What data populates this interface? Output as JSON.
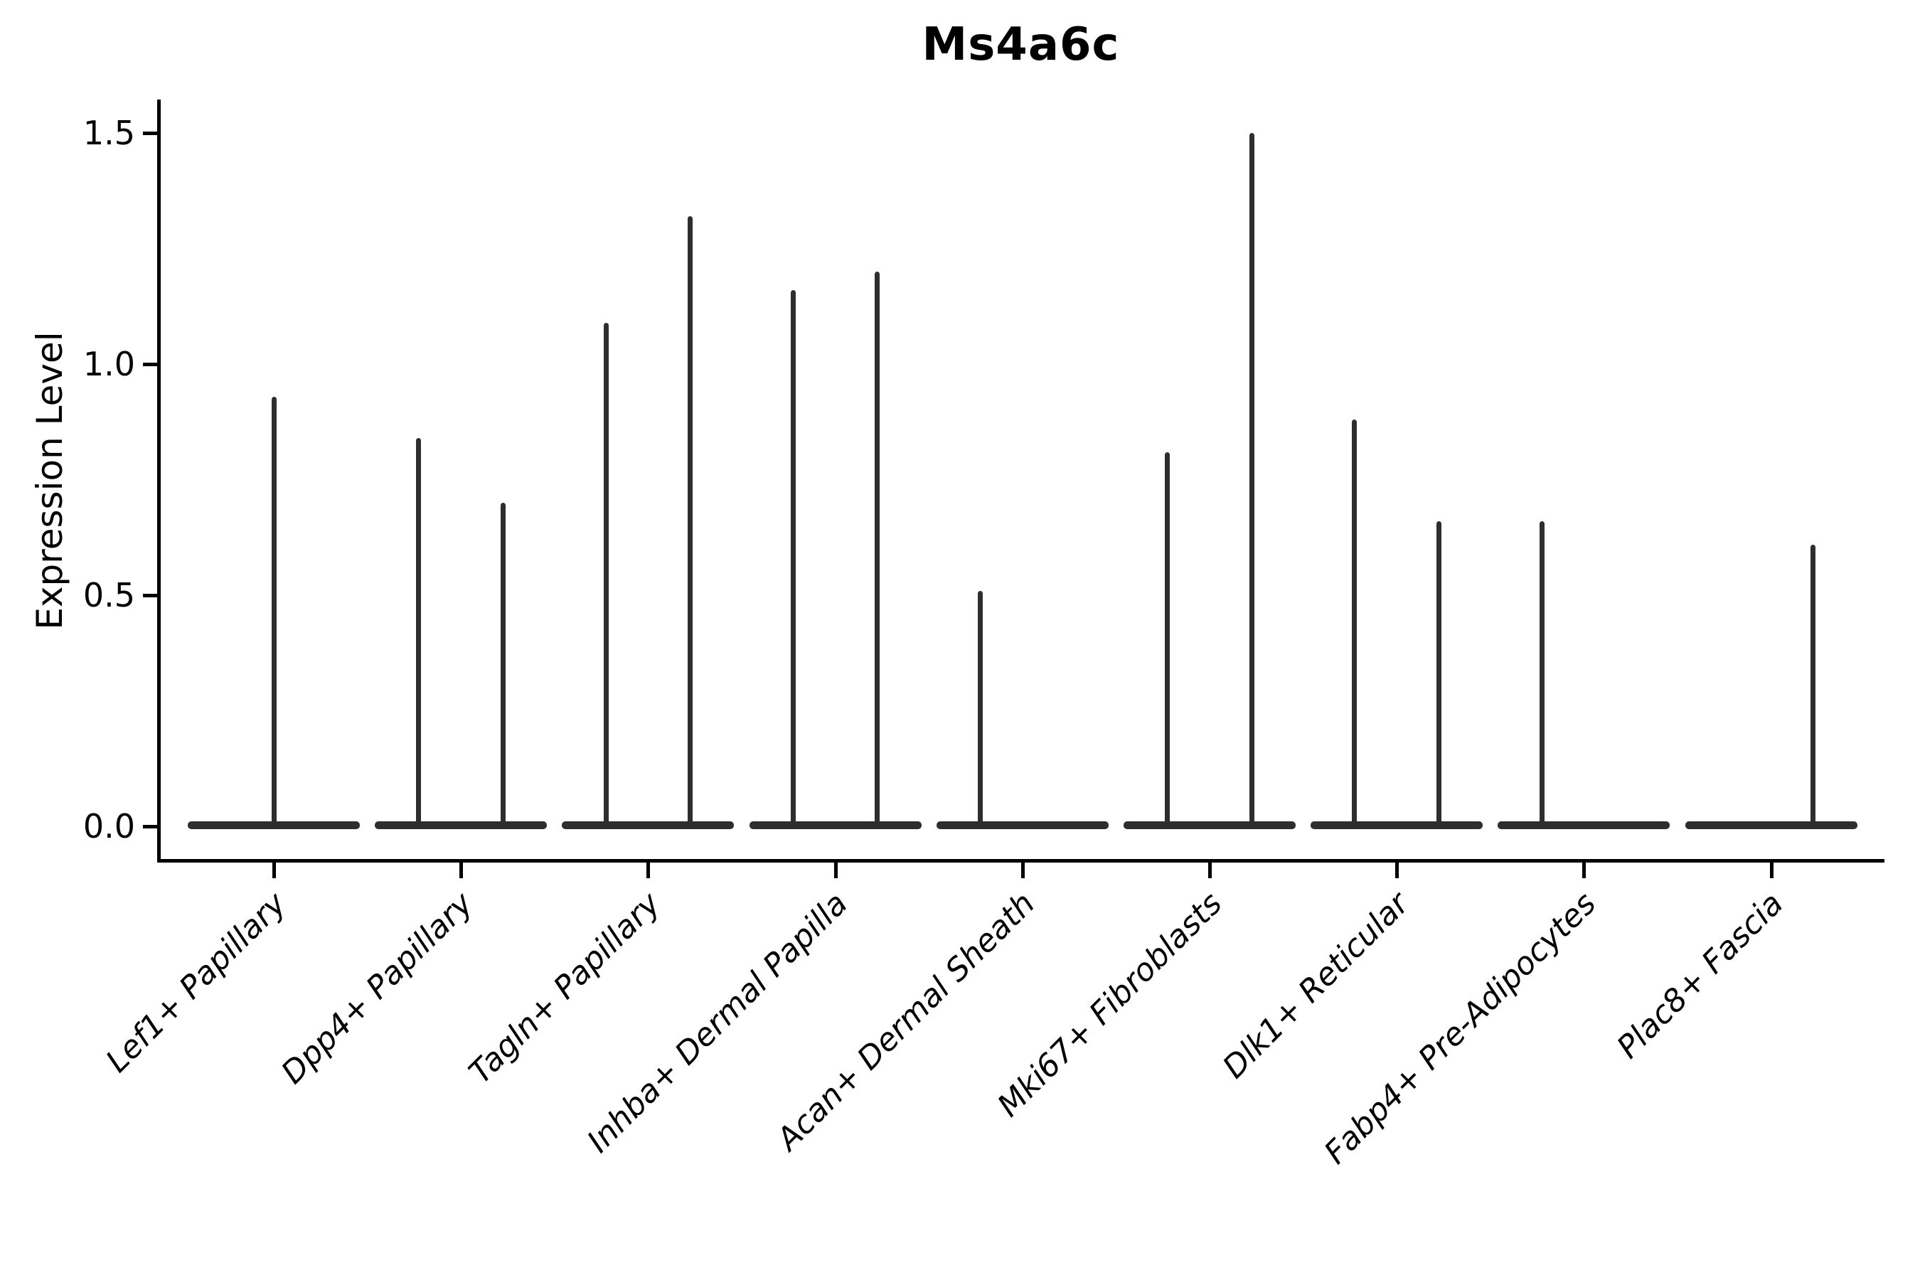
{
  "title": "Ms4a6c",
  "y_axis": {
    "label": "Expression Level",
    "ticks": [
      {
        "value": 0.0,
        "label": "0.0"
      },
      {
        "value": 0.5,
        "label": "0.5"
      },
      {
        "value": 1.0,
        "label": "1.0"
      },
      {
        "value": 1.5,
        "label": "1.5"
      }
    ]
  },
  "x_axis": {
    "categories": [
      "Lef1+ Papillary",
      "Dpp4+ Papillary",
      "Tagln+ Papillary",
      "Inhba+ Dermal Papilla",
      "Acan+ Dermal Sheath",
      "Mki67+ Fibroblasts",
      "Dlk1+ Reticular",
      "Fabp4+ Pre-Adipocytes",
      "Plac8+ Fascia"
    ]
  },
  "chart_data": {
    "type": "violin",
    "title": "Ms4a6c",
    "xlabel": "",
    "ylabel": "Expression Level",
    "ylim": [
      0,
      1.57
    ],
    "grid": false,
    "legend": "none",
    "ink_color": "#2e2e2e",
    "categories": [
      "Lef1+ Papillary",
      "Dpp4+ Papillary",
      "Tagln+ Papillary",
      "Inhba+ Dermal Papilla",
      "Acan+ Dermal Sheath",
      "Mki67+ Fibroblasts",
      "Dlk1+ Reticular",
      "Fabp4+ Pre-Adipocytes",
      "Plac8+ Fascia"
    ],
    "violins": [
      {
        "category": "Lef1+ Papillary",
        "base_value": 0,
        "spikes": [
          {
            "dx": 0.0,
            "max": 0.93
          }
        ]
      },
      {
        "category": "Dpp4+ Papillary",
        "base_value": 0,
        "spikes": [
          {
            "dx": -0.225,
            "max": 0.84
          },
          {
            "dx": 0.225,
            "max": 0.7
          }
        ]
      },
      {
        "category": "Tagln+ Papillary",
        "base_value": 0,
        "spikes": [
          {
            "dx": -0.225,
            "max": 1.09
          },
          {
            "dx": 0.225,
            "max": 1.32
          }
        ]
      },
      {
        "category": "Inhba+ Dermal Papilla",
        "base_value": 0,
        "spikes": [
          {
            "dx": -0.225,
            "max": 1.16
          },
          {
            "dx": 0.225,
            "max": 1.2
          }
        ]
      },
      {
        "category": "Acan+ Dermal Sheath",
        "base_value": 0,
        "spikes": [
          {
            "dx": -0.225,
            "max": 0.51
          }
        ]
      },
      {
        "category": "Mki67+ Fibroblasts",
        "base_value": 0,
        "spikes": [
          {
            "dx": -0.225,
            "max": 0.81
          },
          {
            "dx": 0.225,
            "max": 1.5
          }
        ]
      },
      {
        "category": "Dlk1+ Reticular",
        "base_value": 0,
        "spikes": [
          {
            "dx": -0.225,
            "max": 0.88
          },
          {
            "dx": 0.225,
            "max": 0.66
          }
        ]
      },
      {
        "category": "Fabp4+ Pre-Adipocytes",
        "base_value": 0,
        "spikes": [
          {
            "dx": -0.225,
            "max": 0.66
          }
        ]
      },
      {
        "category": "Plac8+ Fascia",
        "base_value": 0,
        "spikes": [
          {
            "dx": 0.225,
            "max": 0.61
          }
        ]
      }
    ],
    "style_note": "Each violin is flattened into a wide dark bar at expression 0 with thin vertical spike(s) rising to the maximum expression value."
  }
}
